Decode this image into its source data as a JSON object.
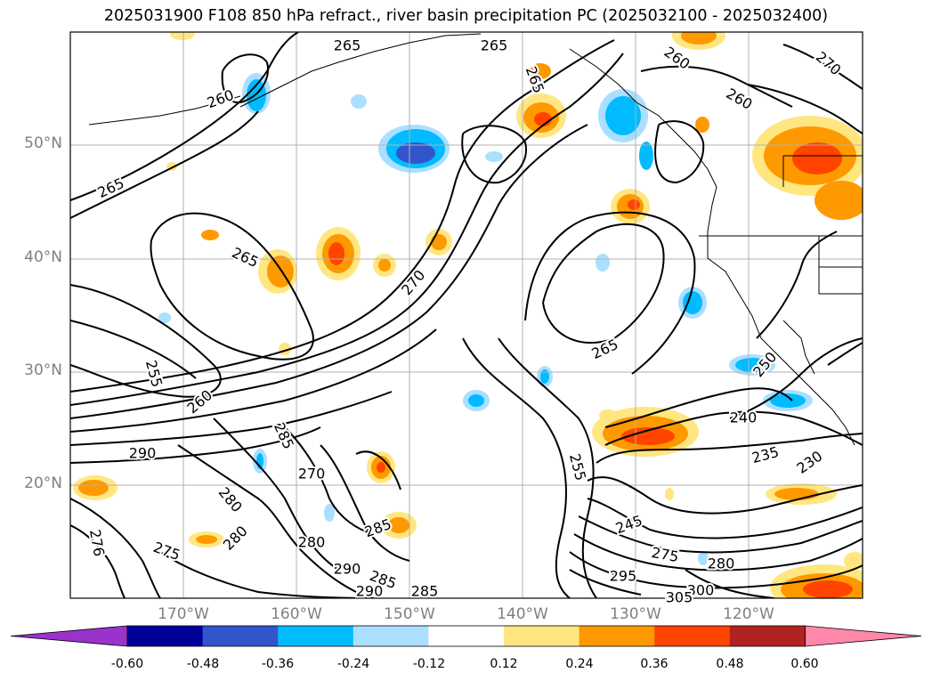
{
  "title": "2025031900 F108 850 hPa refract., river basin precipitation PC (2025032100 - 2025032400)",
  "map": {
    "region": "Northeast Pacific / western North America",
    "lon_range": [
      -180,
      -110
    ],
    "lat_range": [
      10,
      60
    ],
    "lat_labels": [
      "20°N",
      "30°N",
      "40°N",
      "50°N"
    ],
    "lon_labels": [
      "170°W",
      "160°W",
      "150°W",
      "140°W",
      "130°W",
      "120°W"
    ],
    "grid": true
  },
  "contours": {
    "variable": "850 hPa refractivity",
    "labels": [
      "265",
      "265",
      "260",
      "260",
      "265",
      "265",
      "265",
      "270",
      "265",
      "270",
      "260",
      "255",
      "260",
      "250",
      "240",
      "235",
      "230",
      "290",
      "285",
      "270",
      "280",
      "280",
      "275",
      "276",
      "280",
      "285",
      "290",
      "285",
      "290",
      "285",
      "295",
      "245",
      "255",
      "275",
      "280",
      "300",
      "305"
    ]
  },
  "shading": {
    "variable": "river basin precipitation PC",
    "legend_levels": [
      "-0.60",
      "-0.48",
      "-0.36",
      "-0.24",
      "-0.12",
      "0.12",
      "0.24",
      "0.36",
      "0.48",
      "0.60"
    ],
    "legend_colors": [
      "#9933cc",
      "#000099",
      "#3355cc",
      "#00bbff",
      "#aadfff",
      "#ffffff",
      "#ffe680",
      "#ff9900",
      "#ff4400",
      "#b22222",
      "#ff88aa"
    ]
  }
}
